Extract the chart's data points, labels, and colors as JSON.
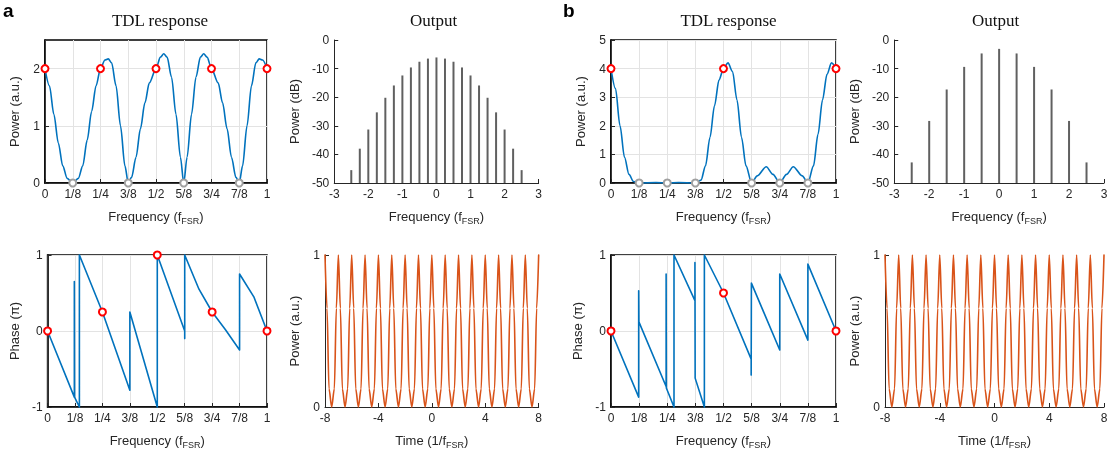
{
  "chart_data": [
    {
      "type": "line",
      "title": "TDL response",
      "annotations": [
        "a"
      ],
      "xlabel": "Frequency (f$_{FSR}$)",
      "ylabel": "Power (a.u.)",
      "xlim": [
        0,
        1
      ],
      "xticks": [
        0,
        {
          "value": 0.125,
          "label": "1/8"
        },
        {
          "value": 0.25,
          "label": "1/4"
        },
        {
          "value": 0.375,
          "label": "3/8"
        },
        {
          "value": 0.5,
          "label": "1/2"
        },
        {
          "value": 0.625,
          "label": "5/8"
        },
        {
          "value": 0.75,
          "label": "3/4"
        },
        {
          "value": 0.875,
          "label": "7/8"
        },
        1
      ],
      "ylim": [
        0,
        2.5
      ],
      "yticks": [
        0,
        1,
        2
      ],
      "grid": true,
      "series": [
        {
          "color": "#0072bd",
          "x": [
            0,
            0.02,
            0.04,
            0.06,
            0.08,
            0.1,
            0.125,
            0.15,
            0.17,
            0.19,
            0.21,
            0.23,
            0.25,
            0.27,
            0.285,
            0.3,
            0.32,
            0.34,
            0.36,
            0.375,
            0.39,
            0.41,
            0.43,
            0.45,
            0.47,
            0.5,
            0.52,
            0.535,
            0.55,
            0.57,
            0.59,
            0.61,
            0.625,
            0.64,
            0.66,
            0.68,
            0.7,
            0.715,
            0.73,
            0.75,
            0.78,
            0.8,
            0.82,
            0.84,
            0.86,
            0.875,
            0.89,
            0.91,
            0.93,
            0.95,
            0.965,
            0.98,
            1
          ],
          "values": [
            2,
            1.7,
            1.2,
            0.7,
            0.3,
            0.08,
            0,
            0.08,
            0.3,
            0.75,
            1.25,
            1.7,
            2,
            2.15,
            2.17,
            2.1,
            1.7,
            1,
            0.3,
            0,
            0.1,
            0.45,
            0.95,
            1.4,
            1.75,
            2,
            2.2,
            2.26,
            2.2,
            1.85,
            1.2,
            0.45,
            0,
            0.45,
            1.2,
            1.85,
            2.2,
            2.26,
            2.2,
            2,
            1.75,
            1.4,
            0.95,
            0.45,
            0.1,
            0,
            0.3,
            1,
            1.7,
            2.1,
            2.17,
            2.15,
            2
          ]
        },
        {
          "type": "scatter",
          "marker": "circle",
          "color": "#ff0000",
          "x": [
            0,
            0.25,
            0.5,
            0.75,
            1
          ],
          "values": [
            2,
            2,
            2,
            2,
            2
          ]
        },
        {
          "type": "scatter",
          "marker": "circle",
          "color": "#a0a0a0",
          "x": [
            0.125,
            0.375,
            0.625,
            0.875
          ],
          "values": [
            0,
            0,
            0,
            0
          ]
        }
      ]
    },
    {
      "type": "bar",
      "title": "Output",
      "xlabel": "Frequency (f$_{FSR}$)",
      "ylabel": "Power (dB)",
      "xlim": [
        -3,
        3
      ],
      "xticks": [
        -3,
        -2,
        -1,
        0,
        1,
        2,
        3
      ],
      "ylim": [
        -50,
        0
      ],
      "yticks": [
        -50,
        -40,
        -30,
        -20,
        -10,
        0
      ],
      "color": "#606060",
      "x": [
        -2.5,
        -2.25,
        -2,
        -1.75,
        -1.5,
        -1.25,
        -1,
        -0.75,
        -0.5,
        -0.25,
        0,
        0.25,
        0.5,
        0.75,
        1,
        1.25,
        1.5,
        1.75,
        2,
        2.25,
        2.5
      ],
      "base": [
        -50,
        -50,
        -50,
        -50,
        -50,
        -50,
        -50,
        -50,
        -50,
        -50,
        -50,
        -50,
        -50,
        -50,
        -50,
        -50,
        -50,
        -50,
        -50,
        -50,
        -50
      ],
      "values": [
        4.5,
        12,
        18.7,
        24.7,
        29.8,
        34.1,
        37.6,
        40.4,
        42.4,
        43.5,
        43.9,
        43.5,
        42.4,
        40.4,
        37.6,
        34.1,
        29.8,
        24.7,
        18.7,
        12,
        4.5
      ]
    },
    {
      "type": "line",
      "title": "TDL response",
      "annotations": [
        "b"
      ],
      "xlabel": "Frequency (f$_{FSR}$)",
      "ylabel": "Power (a.u.)",
      "xlim": [
        0,
        1
      ],
      "xticks": [
        0,
        {
          "value": 0.125,
          "label": "1/8"
        },
        {
          "value": 0.25,
          "label": "1/4"
        },
        {
          "value": 0.375,
          "label": "3/8"
        },
        {
          "value": 0.5,
          "label": "1/2"
        },
        {
          "value": 0.625,
          "label": "5/8"
        },
        {
          "value": 0.75,
          "label": "3/4"
        },
        {
          "value": 0.875,
          "label": "7/8"
        },
        1
      ],
      "ylim": [
        0,
        5
      ],
      "yticks": [
        0,
        1,
        2,
        3,
        4,
        5
      ],
      "grid": true,
      "series": [
        {
          "color": "#0072bd",
          "x": [
            0,
            0.02,
            0.04,
            0.06,
            0.08,
            0.1,
            0.125,
            0.2,
            0.25,
            0.3,
            0.375,
            0.4,
            0.42,
            0.44,
            0.46,
            0.48,
            0.5,
            0.52,
            0.54,
            0.56,
            0.58,
            0.6,
            0.625,
            0.65,
            0.69,
            0.72,
            0.75,
            0.78,
            0.81,
            0.85,
            0.875,
            0.9,
            0.92,
            0.94,
            0.96,
            0.98,
            1
          ],
          "values": [
            4,
            3.3,
            2,
            0.9,
            0.3,
            0.05,
            0,
            0.02,
            0,
            0.02,
            0,
            0.1,
            0.6,
            1.6,
            2.7,
            3.6,
            4,
            4.2,
            3.9,
            2.9,
            1.6,
            0.6,
            0,
            0.25,
            0.57,
            0.3,
            0,
            0.3,
            0.57,
            0.25,
            0,
            0.6,
            1.7,
            2.9,
            3.8,
            4.2,
            4
          ]
        },
        {
          "type": "scatter",
          "marker": "circle",
          "color": "#ff0000",
          "x": [
            0,
            0.5,
            1
          ],
          "values": [
            4,
            4,
            4
          ]
        },
        {
          "type": "scatter",
          "marker": "circle",
          "color": "#a0a0a0",
          "x": [
            0.125,
            0.25,
            0.375,
            0.625,
            0.75,
            0.875
          ],
          "values": [
            0,
            0,
            0,
            0,
            0,
            0
          ]
        }
      ]
    },
    {
      "type": "bar",
      "title": "Output",
      "xlabel": "Frequency (f$_{FSR}$)",
      "ylabel": "Power (dB)",
      "xlim": [
        -3,
        3
      ],
      "xticks": [
        -3,
        -2,
        -1,
        0,
        1,
        2,
        3
      ],
      "ylim": [
        -50,
        0
      ],
      "yticks": [
        -50,
        -40,
        -30,
        -20,
        -10,
        0
      ],
      "color": "#606060",
      "x": [
        -2.5,
        -2,
        -1.5,
        -1,
        -0.5,
        0,
        0.5,
        1,
        1.5,
        2,
        2.5
      ],
      "base": [
        -50,
        -50,
        -50,
        -50,
        -50,
        -50,
        -50,
        -50,
        -50,
        -50,
        -50
      ],
      "values": [
        7.2,
        21.7,
        32.7,
        40.6,
        45.3,
        46.9,
        45.3,
        40.6,
        32.7,
        21.7,
        7.2
      ]
    },
    {
      "type": "line",
      "xlabel": "Frequency (f$_{FSR}$)",
      "ylabel": "Phase (π)",
      "xlim": [
        0,
        1
      ],
      "xticks": [
        0,
        {
          "value": 0.125,
          "label": "1/8"
        },
        {
          "value": 0.25,
          "label": "1/4"
        },
        {
          "value": 0.375,
          "label": "3/8"
        },
        {
          "value": 0.5,
          "label": "1/2"
        },
        {
          "value": 0.625,
          "label": "5/8"
        },
        {
          "value": 0.75,
          "label": "3/4"
        },
        {
          "value": 0.875,
          "label": "7/8"
        },
        1
      ],
      "ylim": [
        -1,
        1
      ],
      "yticks": [
        -1,
        0,
        1
      ],
      "grid": true,
      "series": [
        {
          "color": "#0072bd",
          "x": [
            0,
            0.122,
            0.122,
            0.123,
            0.145,
            0.145,
            0.25,
            0.375,
            0.375,
            0.5,
            0.5,
            0.625,
            0.625,
            0.625,
            0.69,
            0.75,
            0.81,
            0.875,
            0.875,
            0.94,
            1
          ],
          "values": [
            0,
            -0.87,
            0.65,
            -0.87,
            -1,
            1,
            0.25,
            -0.78,
            0.25,
            -1,
            1,
            0,
            -0.1,
            1,
            0.55,
            0.25,
            0.02,
            -0.25,
            0.75,
            0.45,
            0
          ]
        },
        {
          "type": "scatter",
          "marker": "circle",
          "color": "#ff0000",
          "x": [
            0,
            0.25,
            0.5,
            0.75,
            1
          ],
          "values": [
            0,
            0.25,
            1,
            0.25,
            0
          ]
        }
      ]
    },
    {
      "type": "line",
      "xlabel": "Time (1/f$_{FSR}$)",
      "ylabel": "Power (a.u.)",
      "xlim": [
        -8,
        8
      ],
      "xticks": [
        -8,
        -4,
        0,
        4,
        8
      ],
      "ylim": [
        0,
        1
      ],
      "yticks": [
        0,
        1
      ],
      "series": [
        {
          "color": "#d95319",
          "x": [
            -8,
            -7.85,
            -7.7,
            -7.5,
            -7.3,
            -7.15,
            -7,
            -6.85,
            -6.7,
            -6.5,
            -6.3,
            -6.15,
            -6,
            -5.85,
            -5.7,
            -5.5,
            -5.3,
            -5.15,
            -5,
            -4.85,
            -4.7,
            -4.5,
            -4.3,
            -4.15,
            -4,
            -3.85,
            -3.7,
            -3.5,
            -3.3,
            -3.15,
            -3,
            -2.85,
            -2.7,
            -2.5,
            -2.3,
            -2.15,
            -2,
            -1.85,
            -1.7,
            -1.5,
            -1.3,
            -1.15,
            -1,
            -0.85,
            -0.7,
            -0.5,
            -0.3,
            -0.15,
            0,
            0.15,
            0.3,
            0.5,
            0.7,
            0.85,
            1,
            1.15,
            1.3,
            1.5,
            1.7,
            1.85,
            2,
            2.15,
            2.3,
            2.5,
            2.7,
            2.85,
            3,
            3.15,
            3.3,
            3.5,
            3.7,
            3.85,
            4,
            4.15,
            4.3,
            4.5,
            4.7,
            4.85,
            5,
            5.15,
            5.3,
            5.5,
            5.7,
            5.85,
            6,
            6.15,
            6.3,
            6.5,
            6.7,
            6.85,
            7,
            7.15,
            7.3,
            7.5,
            7.7,
            7.85,
            8
          ],
          "values": [
            1,
            0.65,
            0.12,
            0,
            0.12,
            0.65,
            1,
            0.65,
            0.12,
            0,
            0.12,
            0.65,
            1,
            0.65,
            0.12,
            0,
            0.12,
            0.65,
            1,
            0.65,
            0.12,
            0,
            0.12,
            0.65,
            1,
            0.65,
            0.12,
            0,
            0.12,
            0.65,
            1,
            0.65,
            0.12,
            0,
            0.12,
            0.65,
            1,
            0.65,
            0.12,
            0,
            0.12,
            0.65,
            1,
            0.65,
            0.12,
            0,
            0.12,
            0.65,
            1,
            0.65,
            0.12,
            0,
            0.12,
            0.65,
            1,
            0.65,
            0.12,
            0,
            0.12,
            0.65,
            1,
            0.65,
            0.12,
            0,
            0.12,
            0.65,
            1,
            0.65,
            0.12,
            0,
            0.12,
            0.65,
            1,
            0.65,
            0.12,
            0,
            0.12,
            0.65,
            1,
            0.65,
            0.12,
            0,
            0.12,
            0.65,
            1,
            0.65,
            0.12,
            0,
            0.12,
            0.65,
            1,
            0.65,
            0.12,
            0,
            0.12,
            0.65,
            1
          ]
        }
      ]
    },
    {
      "type": "line",
      "xlabel": "Frequency (f$_{FSR}$)",
      "ylabel": "Phase (π)",
      "xlim": [
        0,
        1
      ],
      "xticks": [
        0,
        {
          "value": 0.125,
          "label": "1/8"
        },
        {
          "value": 0.25,
          "label": "1/4"
        },
        {
          "value": 0.375,
          "label": "3/8"
        },
        {
          "value": 0.5,
          "label": "1/2"
        },
        {
          "value": 0.625,
          "label": "5/8"
        },
        {
          "value": 0.75,
          "label": "3/4"
        },
        {
          "value": 0.875,
          "label": "7/8"
        },
        1
      ],
      "ylim": [
        -1,
        1
      ],
      "yticks": [
        -1,
        0,
        1
      ],
      "grid": true,
      "series": [
        {
          "color": "#0072bd",
          "x": [
            0,
            0.123,
            0.123,
            0.124,
            0.245,
            0.245,
            0.246,
            0.28,
            0.28,
            0.373,
            0.373,
            0.374,
            0.415,
            0.415,
            0.5,
            0.623,
            0.623,
            0.624,
            0.75,
            0.75,
            0.875,
            0.875,
            1
          ],
          "values": [
            0,
            -0.87,
            0.53,
            0.12,
            -0.73,
            0.75,
            -0.75,
            -1,
            1,
            0.4,
            0.9,
            -0.62,
            -1,
            1,
            0.5,
            -0.37,
            -0.58,
            0.63,
            -0.25,
            0.75,
            -0.12,
            0.88,
            0
          ]
        },
        {
          "type": "scatter",
          "marker": "circle",
          "color": "#ff0000",
          "x": [
            0,
            0.5,
            1
          ],
          "values": [
            0,
            0.5,
            0
          ]
        }
      ]
    },
    {
      "type": "line",
      "xlabel": "Time (1/f$_{FSR}$)",
      "ylabel": "Power (a.u.)",
      "xlim": [
        -8,
        8
      ],
      "xticks": [
        -8,
        -4,
        0,
        4,
        8
      ],
      "ylim": [
        0,
        1
      ],
      "yticks": [
        0,
        1
      ],
      "series": [
        {
          "color": "#d95319",
          "x": [
            -8,
            -7.85,
            -7.7,
            -7.5,
            -7.3,
            -7.15,
            -7,
            -6.85,
            -6.7,
            -6.5,
            -6.3,
            -6.15,
            -6,
            -5.85,
            -5.7,
            -5.5,
            -5.3,
            -5.15,
            -5,
            -4.85,
            -4.7,
            -4.5,
            -4.3,
            -4.15,
            -4,
            -3.85,
            -3.7,
            -3.5,
            -3.3,
            -3.15,
            -3,
            -2.85,
            -2.7,
            -2.5,
            -2.3,
            -2.15,
            -2,
            -1.85,
            -1.7,
            -1.5,
            -1.3,
            -1.15,
            -1,
            -0.85,
            -0.7,
            -0.5,
            -0.3,
            -0.15,
            0,
            0.15,
            0.3,
            0.5,
            0.7,
            0.85,
            1,
            1.15,
            1.3,
            1.5,
            1.7,
            1.85,
            2,
            2.15,
            2.3,
            2.5,
            2.7,
            2.85,
            3,
            3.15,
            3.3,
            3.5,
            3.7,
            3.85,
            4,
            4.15,
            4.3,
            4.5,
            4.7,
            4.85,
            5,
            5.15,
            5.3,
            5.5,
            5.7,
            5.85,
            6,
            6.15,
            6.3,
            6.5,
            6.7,
            6.85,
            7,
            7.15,
            7.3,
            7.5,
            7.7,
            7.85,
            8
          ],
          "values": [
            1,
            0.65,
            0.12,
            0,
            0.12,
            0.65,
            1,
            0.65,
            0.12,
            0,
            0.12,
            0.65,
            1,
            0.65,
            0.12,
            0,
            0.12,
            0.65,
            1,
            0.65,
            0.12,
            0,
            0.12,
            0.65,
            1,
            0.65,
            0.12,
            0,
            0.12,
            0.65,
            1,
            0.65,
            0.12,
            0,
            0.12,
            0.65,
            1,
            0.65,
            0.12,
            0,
            0.12,
            0.65,
            1,
            0.65,
            0.12,
            0,
            0.12,
            0.65,
            1,
            0.65,
            0.12,
            0,
            0.12,
            0.65,
            1,
            0.65,
            0.12,
            0,
            0.12,
            0.65,
            1,
            0.65,
            0.12,
            0,
            0.12,
            0.65,
            1,
            0.65,
            0.12,
            0,
            0.12,
            0.65,
            1,
            0.65,
            0.12,
            0,
            0.12,
            0.65,
            1,
            0.65,
            0.12,
            0,
            0.12,
            0.65,
            1,
            0.65,
            0.12,
            0,
            0.12,
            0.65,
            1,
            0.65,
            0.12,
            0,
            0.12,
            0.65,
            1
          ]
        }
      ]
    }
  ]
}
